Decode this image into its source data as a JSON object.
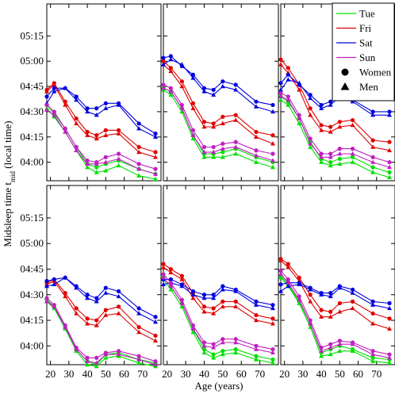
{
  "chart_data": {
    "type": "line",
    "ylabel_main": "Midsleep time t",
    "ylabel_sub": "mid",
    "ylabel_suffix": " (local time)",
    "xlabel": "Age (years)",
    "xlim": [
      18,
      80
    ],
    "ylim_minutes": [
      229,
      334
    ],
    "xticks": [
      20,
      30,
      40,
      50,
      60,
      70
    ],
    "yticks": [
      {
        "label": "04:00",
        "minutes": 240
      },
      {
        "label": "04:15",
        "minutes": 255
      },
      {
        "label": "04:30",
        "minutes": 270
      },
      {
        "label": "04:45",
        "minutes": 285
      },
      {
        "label": "05:00",
        "minutes": 300
      },
      {
        "label": "05:15",
        "minutes": 315
      }
    ],
    "x": [
      18,
      22,
      28,
      34,
      40,
      45,
      50,
      57,
      68,
      77
    ],
    "legend": {
      "placement": "top-right",
      "entries": [
        {
          "label": "Tue",
          "color": "#00e000",
          "type": "line"
        },
        {
          "label": "Fri",
          "color": "#e00000",
          "type": "line"
        },
        {
          "label": "Sat",
          "color": "#0000e0",
          "type": "line"
        },
        {
          "label": "Sun",
          "color": "#c020c0",
          "type": "line"
        },
        {
          "label": "Women",
          "type": "marker",
          "marker": "circle"
        },
        {
          "label": "Men",
          "type": "marker",
          "marker": "triangle"
        }
      ]
    },
    "panels": [
      {
        "series": [
          {
            "day": "Tue",
            "sex": "Women",
            "values": [
              274,
              269,
              260,
              249,
              239,
              237,
              239,
              241,
              236,
              233
            ]
          },
          {
            "day": "Tue",
            "sex": "Men",
            "values": [
              272,
              267,
              258,
              247,
              237,
              234,
              235,
              238,
              232,
              230
            ]
          },
          {
            "day": "Fri",
            "sex": "Women",
            "values": [
              283,
              287,
              276,
              266,
              258,
              256,
              259,
              259,
              249,
              246
            ]
          },
          {
            "day": "Fri",
            "sex": "Men",
            "values": [
              282,
              286,
              274,
              263,
              256,
              254,
              256,
              257,
              246,
              243
            ]
          },
          {
            "day": "Sat",
            "sex": "Women",
            "values": [
              279,
              284,
              284,
              279,
              272,
              272,
              275,
              275,
              263,
              257
            ]
          },
          {
            "day": "Sat",
            "sex": "Men",
            "values": [
              275,
              282,
              284,
              277,
              270,
              268,
              272,
              274,
              260,
              255
            ]
          },
          {
            "day": "Sun",
            "sex": "Women",
            "values": [
              274,
              270,
              260,
              249,
              241,
              240,
              243,
              245,
              239,
              236
            ]
          },
          {
            "day": "Sun",
            "sex": "Men",
            "values": [
              271,
              268,
              258,
              247,
              239,
              239,
              240,
              242,
              236,
              233
            ]
          }
        ]
      },
      {
        "series": [
          {
            "day": "Tue",
            "sex": "Women",
            "values": [
              284,
              282,
              272,
              256,
              245,
              245,
              246,
              248,
              243,
              240
            ]
          },
          {
            "day": "Tue",
            "sex": "Men",
            "values": [
              283,
              280,
              270,
              254,
              243,
              243,
              243,
              245,
              240,
              237
            ]
          },
          {
            "day": "Fri",
            "sex": "Women",
            "values": [
              300,
              296,
              288,
              275,
              264,
              263,
              267,
              268,
              258,
              256
            ]
          },
          {
            "day": "Fri",
            "sex": "Men",
            "values": [
              298,
              294,
              285,
              272,
              261,
              261,
              263,
              265,
              255,
              251
            ]
          },
          {
            "day": "Sat",
            "sex": "Women",
            "values": [
              302,
              303,
              297,
              292,
              284,
              283,
              288,
              286,
              276,
              274
            ]
          },
          {
            "day": "Sat",
            "sex": "Men",
            "values": [
              298,
              301,
              298,
              290,
              282,
              280,
              285,
              283,
              273,
              270
            ]
          },
          {
            "day": "Sun",
            "sex": "Women",
            "values": [
              286,
              284,
              274,
              259,
              249,
              249,
              251,
              252,
              247,
              245
            ]
          },
          {
            "day": "Sun",
            "sex": "Men",
            "values": [
              284,
              282,
              272,
              256,
              246,
              246,
              248,
              249,
              244,
              241
            ]
          }
        ]
      },
      {
        "series": [
          {
            "day": "Tue",
            "sex": "Women",
            "values": [
              279,
              276,
              266,
              252,
              242,
              240,
              242,
              243,
              237,
              234
            ]
          },
          {
            "day": "Tue",
            "sex": "Men",
            "values": [
              277,
              274,
              263,
              249,
              240,
              238,
              239,
              240,
              234,
              231
            ]
          },
          {
            "day": "Fri",
            "sex": "Women",
            "values": [
              301,
              296,
              286,
              272,
              262,
              261,
              264,
              265,
              253,
              252
            ]
          },
          {
            "day": "Fri",
            "sex": "Men",
            "values": [
              298,
              293,
              283,
              268,
              259,
              258,
              261,
              262,
              249,
              247
            ]
          },
          {
            "day": "Sat",
            "sex": "Women",
            "values": [
              287,
              292,
              286,
              280,
              274,
              276,
              281,
              277,
              270,
              270
            ]
          },
          {
            "day": "Sat",
            "sex": "Men",
            "values": [
              283,
              289,
              287,
              278,
              272,
              274,
              279,
              276,
              268,
              268
            ]
          },
          {
            "day": "Sun",
            "sex": "Women",
            "values": [
              281,
              279,
              268,
              254,
              245,
              245,
              248,
              248,
              243,
              240
            ]
          },
          {
            "day": "Sun",
            "sex": "Men",
            "values": [
              279,
              277,
              266,
              251,
              243,
              243,
              245,
              245,
              240,
              237
            ]
          }
        ]
      },
      {
        "series": [
          {
            "day": "Tue",
            "sex": "Women",
            "values": [
              267,
              263,
              251,
              238,
              231,
              229,
              235,
              236,
              232,
              230
            ]
          },
          {
            "day": "Tue",
            "sex": "Men",
            "values": [
              266,
              262,
              250,
              237,
              229,
              228,
              233,
              234,
              230,
              228
            ]
          },
          {
            "day": "Fri",
            "sex": "Women",
            "values": [
              277,
              279,
              271,
              262,
              256,
              255,
              261,
              263,
              251,
              246
            ]
          },
          {
            "day": "Fri",
            "sex": "Men",
            "values": [
              276,
              278,
              269,
              259,
              253,
              252,
              258,
              259,
              248,
              243
            ]
          },
          {
            "day": "Sat",
            "sex": "Women",
            "values": [
              278,
              279,
              280,
              275,
              270,
              268,
              274,
              272,
              262,
              257
            ]
          },
          {
            "day": "Sat",
            "sex": "Men",
            "values": [
              275,
              276,
              280,
              274,
              268,
              266,
              271,
              269,
              259,
              254
            ]
          },
          {
            "day": "Sun",
            "sex": "Women",
            "values": [
              268,
              264,
              252,
              239,
              233,
              233,
              236,
              237,
              234,
              231
            ]
          },
          {
            "day": "Sun",
            "sex": "Men",
            "values": [
              266,
              263,
              251,
              238,
              231,
              230,
              235,
              235,
              232,
              229
            ]
          }
        ]
      },
      {
        "series": [
          {
            "day": "Tue",
            "sex": "Women",
            "values": [
              280,
              275,
              265,
              250,
              238,
              235,
              237,
              238,
              234,
              232
            ]
          },
          {
            "day": "Tue",
            "sex": "Men",
            "values": [
              279,
              273,
              263,
              248,
              236,
              233,
              235,
              236,
              232,
              230
            ]
          },
          {
            "day": "Fri",
            "sex": "Women",
            "values": [
              288,
              285,
              281,
              271,
              263,
              262,
              266,
              266,
              258,
              256
            ]
          },
          {
            "day": "Fri",
            "sex": "Men",
            "values": [
              286,
              283,
              279,
              268,
              260,
              259,
              263,
              263,
              255,
              253
            ]
          },
          {
            "day": "Sat",
            "sex": "Women",
            "values": [
              279,
              279,
              276,
              272,
              270,
              270,
              275,
              273,
              266,
              264
            ]
          },
          {
            "day": "Sat",
            "sex": "Men",
            "values": [
              276,
              277,
              275,
              270,
              268,
              268,
              273,
              272,
              264,
              262
            ]
          },
          {
            "day": "Sun",
            "sex": "Women",
            "values": [
              282,
              277,
              267,
              252,
              242,
              241,
              244,
              244,
              240,
              238
            ]
          },
          {
            "day": "Sun",
            "sex": "Men",
            "values": [
              280,
              275,
              265,
              250,
              240,
              239,
              242,
              242,
              238,
              236
            ]
          }
        ]
      },
      {
        "series": [
          {
            "day": "Tue",
            "sex": "Women",
            "values": [
              281,
              276,
              266,
              253,
              236,
              238,
              240,
              238,
              233,
              232
            ]
          },
          {
            "day": "Tue",
            "sex": "Men",
            "values": [
              280,
              275,
              265,
              251,
              234,
              235,
              237,
              237,
              231,
              230
            ]
          },
          {
            "day": "Fri",
            "sex": "Women",
            "values": [
              291,
              288,
              280,
              270,
              261,
              260,
              265,
              266,
              259,
              256
            ]
          },
          {
            "day": "Fri",
            "sex": "Men",
            "values": [
              290,
              286,
              278,
              266,
              257,
              257,
              260,
              262,
              253,
              250
            ]
          },
          {
            "day": "Sat",
            "sex": "Women",
            "values": [
              276,
              277,
              277,
              274,
              271,
              271,
              275,
              273,
              266,
              265
            ]
          },
          {
            "day": "Sat",
            "sex": "Men",
            "values": [
              272,
              275,
              276,
              273,
              270,
              269,
              274,
              271,
              264,
              262
            ]
          },
          {
            "day": "Sun",
            "sex": "Women",
            "values": [
              284,
              279,
              269,
              255,
              239,
              241,
              243,
              242,
              237,
              235
            ]
          },
          {
            "day": "Sun",
            "sex": "Men",
            "values": [
              282,
              277,
              267,
              253,
              237,
              239,
              241,
              241,
              235,
              233
            ]
          }
        ]
      }
    ]
  }
}
